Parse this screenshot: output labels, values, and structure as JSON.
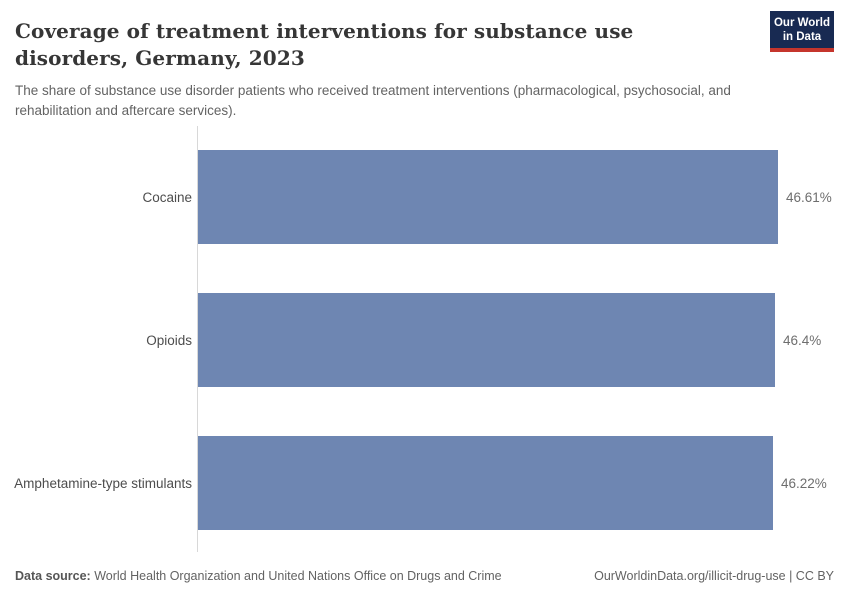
{
  "header": {
    "title": "Coverage of treatment interventions for substance use disorders, Germany, 2023",
    "subtitle": "The share of substance use disorder patients who received treatment interventions (pharmacological, psychosocial, and rehabilitation and aftercare services).",
    "logo_line1": "Our World",
    "logo_line2": "in Data"
  },
  "chart_data": {
    "type": "bar",
    "orientation": "horizontal",
    "title": "Coverage of treatment interventions for substance use disorders, Germany, 2023",
    "categories": [
      "Cocaine",
      "Opioids",
      "Amphetamine-type stimulants"
    ],
    "values": [
      46.61,
      46.4,
      46.22
    ],
    "value_labels": [
      "46.61%",
      "46.4%",
      "46.22%"
    ],
    "unit": "%",
    "xlim": [
      0,
      46.61
    ],
    "grid": false,
    "legend": "none",
    "bar_color": "#6e86b2"
  },
  "footer": {
    "source_label": "Data source:",
    "source_text": "World Health Organization and United Nations Office on Drugs and Crime",
    "credit": "OurWorldinData.org/illicit-drug-use | CC BY"
  },
  "colors": {
    "bar": "#6e86b2",
    "axis_line": "#d8d8d8",
    "logo_bg": "#182a52",
    "logo_accent": "#c5352c",
    "title_text": "#363636",
    "subtitle_text": "#636363"
  }
}
